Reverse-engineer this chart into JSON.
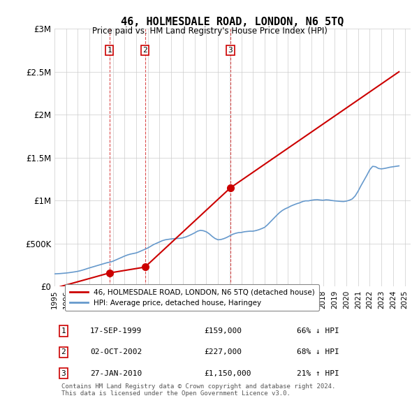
{
  "title": "46, HOLMESDALE ROAD, LONDON, N6 5TQ",
  "subtitle": "Price paid vs. HM Land Registry's House Price Index (HPI)",
  "xlabel": "",
  "ylabel": "",
  "ylim": [
    0,
    3000000
  ],
  "yticks": [
    0,
    500000,
    1000000,
    1500000,
    2000000,
    2500000,
    3000000
  ],
  "ytick_labels": [
    "£0",
    "£500K",
    "£1M",
    "£1.5M",
    "£2M",
    "£2.5M",
    "£3M"
  ],
  "xlim_start": 1995.0,
  "xlim_end": 2025.5,
  "xticks": [
    1995,
    1996,
    1997,
    1998,
    1999,
    2000,
    2001,
    2002,
    2003,
    2004,
    2005,
    2006,
    2007,
    2008,
    2009,
    2010,
    2011,
    2012,
    2013,
    2014,
    2015,
    2016,
    2017,
    2018,
    2019,
    2020,
    2021,
    2022,
    2023,
    2024,
    2025
  ],
  "background_color": "#ffffff",
  "grid_color": "#cccccc",
  "sale_color": "#cc0000",
  "hpi_color": "#6699cc",
  "vline_color": "#cc0000",
  "legend_sale_label": "46, HOLMESDALE ROAD, LONDON, N6 5TQ (detached house)",
  "legend_hpi_label": "HPI: Average price, detached house, Haringey",
  "transactions": [
    {
      "num": 1,
      "date_num": 1999.71,
      "price": 159000,
      "label": "1",
      "pct": "66%",
      "dir": "↓",
      "vline_x": 1999.71
    },
    {
      "num": 2,
      "date_num": 2002.75,
      "price": 227000,
      "label": "2",
      "pct": "68%",
      "dir": "↓",
      "vline_x": 2002.75
    },
    {
      "num": 3,
      "date_num": 2010.07,
      "price": 1150000,
      "label": "3",
      "pct": "21%",
      "dir": "↑",
      "vline_x": 2010.07
    }
  ],
  "table_rows": [
    {
      "num": "1",
      "date": "17-SEP-1999",
      "price": "£159,000",
      "info": "66% ↓ HPI"
    },
    {
      "num": "2",
      "date": "02-OCT-2002",
      "price": "£227,000",
      "info": "68% ↓ HPI"
    },
    {
      "num": "3",
      "date": "27-JAN-2010",
      "price": "£1,150,000",
      "info": "21% ↑ HPI"
    }
  ],
  "footnote": "Contains HM Land Registry data © Crown copyright and database right 2024.\nThis data is licensed under the Open Government Licence v3.0.",
  "hpi_data_x": [
    1995.0,
    1995.25,
    1995.5,
    1995.75,
    1996.0,
    1996.25,
    1996.5,
    1996.75,
    1997.0,
    1997.25,
    1997.5,
    1997.75,
    1998.0,
    1998.25,
    1998.5,
    1998.75,
    1999.0,
    1999.25,
    1999.5,
    1999.75,
    2000.0,
    2000.25,
    2000.5,
    2000.75,
    2001.0,
    2001.25,
    2001.5,
    2001.75,
    2002.0,
    2002.25,
    2002.5,
    2002.75,
    2003.0,
    2003.25,
    2003.5,
    2003.75,
    2004.0,
    2004.25,
    2004.5,
    2004.75,
    2005.0,
    2005.25,
    2005.5,
    2005.75,
    2006.0,
    2006.25,
    2006.5,
    2006.75,
    2007.0,
    2007.25,
    2007.5,
    2007.75,
    2008.0,
    2008.25,
    2008.5,
    2008.75,
    2009.0,
    2009.25,
    2009.5,
    2009.75,
    2010.0,
    2010.25,
    2010.5,
    2010.75,
    2011.0,
    2011.25,
    2011.5,
    2011.75,
    2012.0,
    2012.25,
    2012.5,
    2012.75,
    2013.0,
    2013.25,
    2013.5,
    2013.75,
    2014.0,
    2014.25,
    2014.5,
    2014.75,
    2015.0,
    2015.25,
    2015.5,
    2015.75,
    2016.0,
    2016.25,
    2016.5,
    2016.75,
    2017.0,
    2017.25,
    2017.5,
    2017.75,
    2018.0,
    2018.25,
    2018.5,
    2018.75,
    2019.0,
    2019.25,
    2019.5,
    2019.75,
    2020.0,
    2020.25,
    2020.5,
    2020.75,
    2021.0,
    2021.25,
    2021.5,
    2021.75,
    2022.0,
    2022.25,
    2022.5,
    2022.75,
    2023.0,
    2023.25,
    2023.5,
    2023.75,
    2024.0,
    2024.25,
    2024.5
  ],
  "hpi_data_y": [
    148000,
    150000,
    152000,
    155000,
    158000,
    162000,
    167000,
    172000,
    178000,
    186000,
    196000,
    207000,
    218000,
    228000,
    238000,
    248000,
    258000,
    268000,
    278000,
    285000,
    295000,
    310000,
    325000,
    340000,
    355000,
    368000,
    378000,
    385000,
    392000,
    405000,
    420000,
    435000,
    450000,
    470000,
    490000,
    505000,
    520000,
    535000,
    545000,
    550000,
    555000,
    558000,
    560000,
    562000,
    568000,
    578000,
    592000,
    608000,
    625000,
    645000,
    655000,
    650000,
    638000,
    615000,
    585000,
    560000,
    545000,
    548000,
    558000,
    572000,
    590000,
    608000,
    620000,
    628000,
    630000,
    638000,
    642000,
    645000,
    645000,
    652000,
    662000,
    675000,
    690000,
    720000,
    755000,
    790000,
    825000,
    858000,
    885000,
    905000,
    920000,
    938000,
    952000,
    965000,
    975000,
    990000,
    998000,
    998000,
    1005000,
    1010000,
    1012000,
    1008000,
    1005000,
    1010000,
    1008000,
    1002000,
    998000,
    995000,
    992000,
    990000,
    995000,
    1005000,
    1020000,
    1055000,
    1110000,
    1175000,
    1235000,
    1295000,
    1360000,
    1400000,
    1395000,
    1375000,
    1370000,
    1375000,
    1382000,
    1390000,
    1395000,
    1400000,
    1405000
  ],
  "sale_data_x": [
    1995.5,
    1999.71,
    2002.75,
    2010.07,
    2024.5
  ],
  "sale_data_y": [
    0,
    159000,
    227000,
    1150000,
    2500000
  ]
}
